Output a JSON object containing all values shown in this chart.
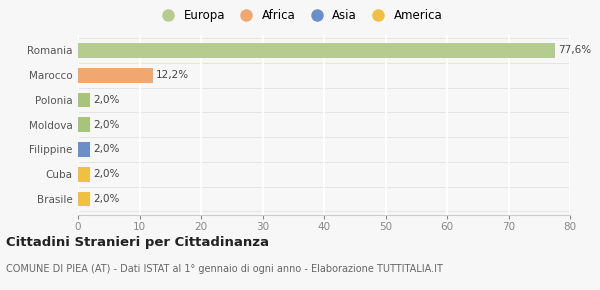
{
  "categories": [
    "Brasile",
    "Cuba",
    "Filippine",
    "Moldova",
    "Polonia",
    "Marocco",
    "Romania"
  ],
  "values": [
    2.0,
    2.0,
    2.0,
    2.0,
    2.0,
    12.2,
    77.6
  ],
  "colors": [
    "#f0c040",
    "#f0c040",
    "#6b8fc9",
    "#a8c47a",
    "#a8c47a",
    "#f0a870",
    "#b5cc8e"
  ],
  "labels": [
    "2,0%",
    "2,0%",
    "2,0%",
    "2,0%",
    "2,0%",
    "12,2%",
    "77,6%"
  ],
  "legend": [
    {
      "label": "Europa",
      "color": "#b5cc8e"
    },
    {
      "label": "Africa",
      "color": "#f0a870"
    },
    {
      "label": "Asia",
      "color": "#6b8fc9"
    },
    {
      "label": "America",
      "color": "#f0c040"
    }
  ],
  "title": "Cittadini Stranieri per Cittadinanza",
  "subtitle": "COMUNE DI PIEA (AT) - Dati ISTAT al 1° gennaio di ogni anno - Elaborazione TUTTITALIA.IT",
  "xlim": [
    0,
    80
  ],
  "xticks": [
    0,
    10,
    20,
    30,
    40,
    50,
    60,
    70,
    80
  ],
  "bg_color": "#f7f7f7",
  "grid_color": "#ffffff"
}
